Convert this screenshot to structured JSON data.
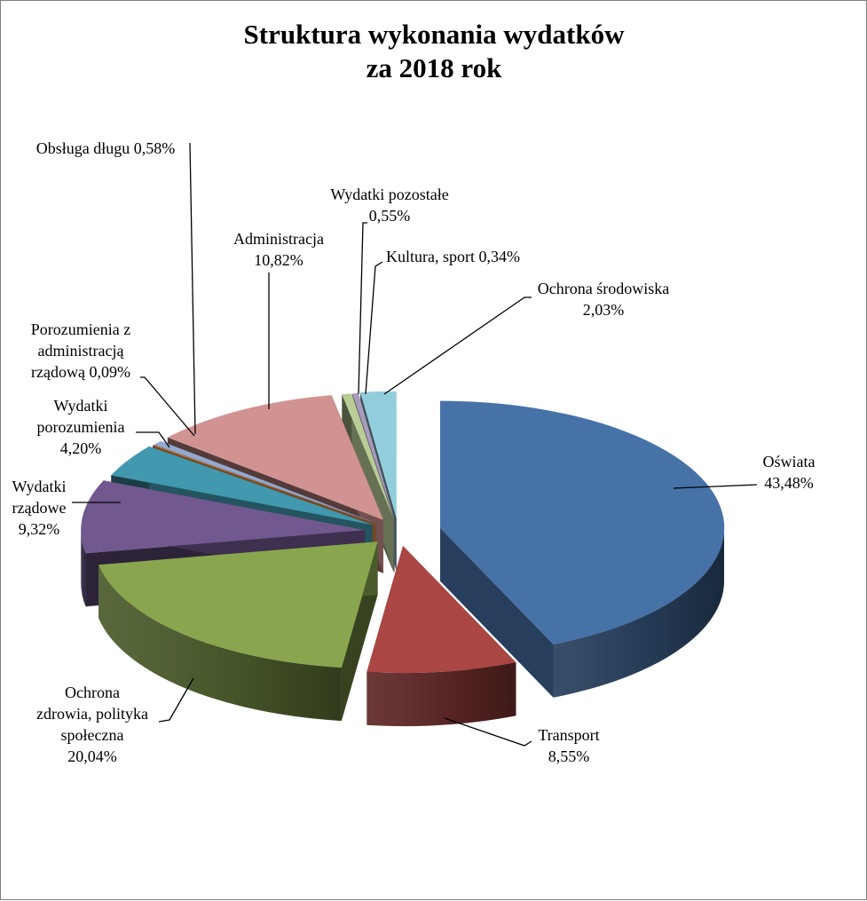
{
  "chart_data": {
    "type": "pie",
    "variant": "3d-exploded",
    "title": [
      "Struktura wykonania wydatków",
      "za 2018 rok"
    ],
    "slices": [
      {
        "name": "Oświata",
        "value": 43.48,
        "label": [
          "Oświata",
          "43,48%"
        ],
        "color": "#4672A8"
      },
      {
        "name": "Transport",
        "value": 8.55,
        "label": [
          "Transport",
          "8,55%"
        ],
        "color": "#AA4744"
      },
      {
        "name": "Ochrona zdrowia, polityka społeczna",
        "value": 20.04,
        "label": [
          "Ochrona",
          "zdrowia, polityka",
          "społeczna",
          "20,04%"
        ],
        "color": "#89A54E"
      },
      {
        "name": "Wydatki rządowe",
        "value": 9.32,
        "label": [
          "Wydatki",
          "rządowe",
          "9,32%"
        ],
        "color": "#71588F"
      },
      {
        "name": "Wydatki porozumienia",
        "value": 4.2,
        "label": [
          "Wydatki",
          "porozumienia",
          "4,20%"
        ],
        "color": "#4198AF"
      },
      {
        "name": "Porozumienia z administracją rządową",
        "value": 0.09,
        "label": [
          "Porozumienia z",
          "administracją",
          "rządową 0,09%"
        ],
        "color": "#DB843D"
      },
      {
        "name": "Obsługa długu",
        "value": 0.58,
        "label": [
          "Obsługa długu 0,58%"
        ],
        "color": "#93A9CF"
      },
      {
        "name": "Administracja",
        "value": 10.82,
        "label": [
          "Administracja",
          "10,82%"
        ],
        "color": "#D19392"
      },
      {
        "name": "Wydatki pozostałe",
        "value": 0.55,
        "label": [
          "Wydatki  pozostałe",
          "0,55%"
        ],
        "color": "#B9CD96"
      },
      {
        "name": "Kultura, sport",
        "value": 0.34,
        "label": [
          "Kultura, sport 0,34%"
        ],
        "color": "#A99BBD"
      },
      {
        "name": "Ochrona środowiska",
        "value": 2.03,
        "label": [
          "Ochrona środowiska",
          "2,03%"
        ],
        "color": "#92CDDC"
      }
    ]
  }
}
